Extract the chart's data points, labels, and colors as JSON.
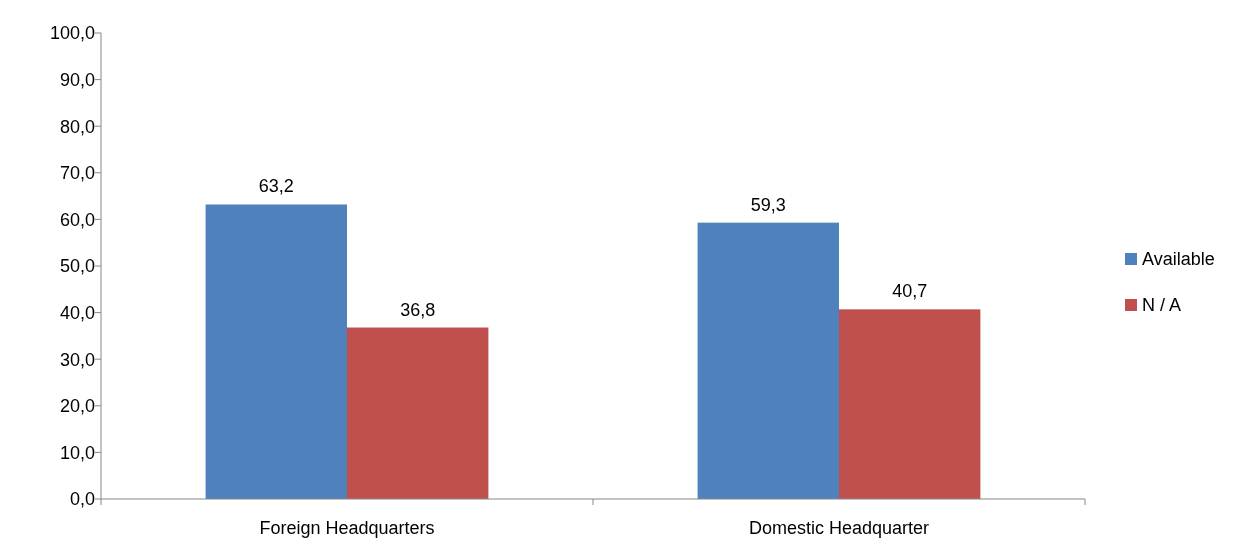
{
  "chart_data": {
    "type": "bar",
    "categories": [
      "Foreign Headquarters",
      "Domestic Headquarter"
    ],
    "series": [
      {
        "name": "Available",
        "color": "#4f81bd",
        "values": [
          63.2,
          59.3
        ],
        "value_labels": [
          "63,2",
          "59,3"
        ]
      },
      {
        "name": "N / A",
        "color": "#c0504d",
        "values": [
          36.8,
          40.7
        ],
        "value_labels": [
          "36,8",
          "40,7"
        ]
      }
    ],
    "ylim": [
      0,
      100
    ],
    "yticks": [
      {
        "value": 0,
        "label": "0,0"
      },
      {
        "value": 10,
        "label": "10,0"
      },
      {
        "value": 20,
        "label": "20,0"
      },
      {
        "value": 30,
        "label": "30,0"
      },
      {
        "value": 40,
        "label": "40,0"
      },
      {
        "value": 50,
        "label": "50,0"
      },
      {
        "value": 60,
        "label": "60,0"
      },
      {
        "value": 70,
        "label": "70,0"
      },
      {
        "value": 80,
        "label": "80,0"
      },
      {
        "value": 90,
        "label": "90,0"
      },
      {
        "value": 100,
        "label": "100,0"
      }
    ],
    "grid": false,
    "legend": "right"
  }
}
